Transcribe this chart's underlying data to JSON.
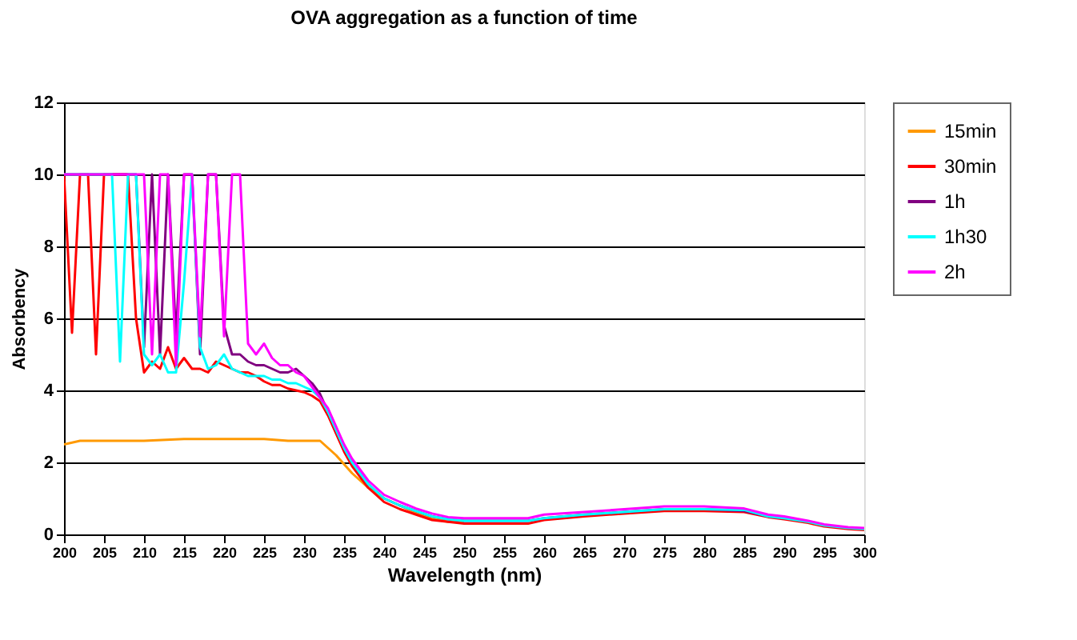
{
  "chart_data": {
    "type": "line",
    "title": "OVA aggregation as a function of time",
    "xlabel": "Wavelength (nm)",
    "ylabel": "Absorbency",
    "xlim": [
      200,
      300
    ],
    "xticks": [
      200,
      205,
      210,
      215,
      220,
      225,
      230,
      235,
      240,
      245,
      250,
      255,
      260,
      265,
      270,
      275,
      280,
      285,
      290,
      295,
      300
    ],
    "ylim": [
      0,
      12
    ],
    "yticks": [
      0,
      2,
      4,
      6,
      8,
      10,
      12
    ],
    "grid": "y",
    "legend": "right",
    "marker": "none",
    "line_style": "solid",
    "series": [
      {
        "name": "15min",
        "color": "#ff9900",
        "x": [
          200,
          202,
          205,
          210,
          215,
          220,
          225,
          228,
          230,
          232,
          234,
          236,
          238,
          240,
          242,
          244,
          246,
          248,
          250
        ],
        "values": [
          2.5,
          2.6,
          2.6,
          2.6,
          2.65,
          2.65,
          2.65,
          2.6,
          2.6,
          2.6,
          2.2,
          1.7,
          1.3,
          1.0,
          0.8,
          0.6,
          0.45,
          0.35,
          0.35
        ]
      },
      {
        "name": "30min",
        "color": "#ff0000",
        "x": [
          200,
          201,
          202,
          203,
          204,
          205,
          206,
          207,
          208,
          209,
          210,
          211,
          212,
          213,
          214,
          215,
          216,
          217,
          218,
          219,
          220,
          221,
          222,
          223,
          224,
          225,
          226,
          227,
          228,
          229,
          230,
          231,
          232,
          233,
          234,
          235,
          236,
          237,
          238,
          240,
          242,
          244,
          246,
          248,
          250,
          255,
          258,
          260,
          265,
          270,
          275,
          280,
          285,
          288,
          290,
          293,
          295,
          298,
          300
        ],
        "values": [
          10,
          5.6,
          10,
          10,
          5.0,
          10,
          10,
          10,
          10,
          6,
          4.5,
          4.8,
          4.6,
          5.2,
          4.6,
          4.9,
          4.6,
          4.6,
          4.5,
          4.8,
          4.7,
          4.6,
          4.5,
          4.5,
          4.4,
          4.25,
          4.15,
          4.15,
          4.05,
          4.0,
          3.95,
          3.85,
          3.7,
          3.3,
          2.8,
          2.3,
          1.9,
          1.6,
          1.3,
          0.9,
          0.7,
          0.55,
          0.4,
          0.35,
          0.3,
          0.3,
          0.3,
          0.4,
          0.5,
          0.58,
          0.65,
          0.65,
          0.62,
          0.48,
          0.42,
          0.32,
          0.22,
          0.15,
          0.12
        ]
      },
      {
        "name": "1h",
        "color": "#800080",
        "x": [
          200,
          209,
          210,
          211,
          212,
          213,
          214,
          215,
          216,
          217,
          218,
          219,
          220,
          221,
          222,
          223,
          224,
          225,
          226,
          227,
          228,
          229,
          230,
          231,
          232,
          233,
          234,
          235,
          236,
          237,
          238,
          240,
          242,
          244,
          246,
          248,
          250,
          255,
          258,
          260,
          265,
          270,
          275,
          280,
          285,
          288,
          290
        ],
        "values": [
          10,
          10,
          5.2,
          10,
          5.0,
          10,
          5.5,
          10,
          10,
          5.0,
          10,
          10,
          5.8,
          5.0,
          5.0,
          4.8,
          4.7,
          4.7,
          4.6,
          4.5,
          4.5,
          4.6,
          4.4,
          4.2,
          3.9,
          3.4,
          2.9,
          2.4,
          2.0,
          1.7,
          1.4,
          1.0,
          0.8,
          0.65,
          0.5,
          0.42,
          0.38,
          0.38,
          0.38,
          0.45,
          0.55,
          0.62,
          0.7,
          0.7,
          0.65,
          0.5,
          0.45
        ]
      },
      {
        "name": "1h30",
        "color": "#00ffff",
        "x": [
          200,
          206,
          207,
          208,
          209,
          210,
          211,
          212,
          213,
          214,
          215,
          216,
          217,
          218,
          219,
          220,
          221,
          222,
          223,
          224,
          225,
          226,
          227,
          228,
          229,
          230,
          231,
          232,
          233,
          234,
          235,
          236,
          237,
          238,
          240,
          242,
          244,
          246,
          248,
          250,
          255,
          258,
          260,
          265,
          270,
          275,
          280,
          285,
          288,
          290,
          293,
          295,
          298,
          300
        ],
        "values": [
          10,
          10,
          4.8,
          10,
          10,
          5.0,
          4.7,
          5.0,
          4.5,
          4.5,
          7,
          10,
          5.2,
          4.6,
          4.7,
          5.0,
          4.6,
          4.5,
          4.4,
          4.4,
          4.4,
          4.3,
          4.3,
          4.2,
          4.2,
          4.1,
          4.0,
          3.8,
          3.4,
          2.9,
          2.4,
          2.0,
          1.7,
          1.4,
          1.0,
          0.8,
          0.65,
          0.5,
          0.42,
          0.38,
          0.38,
          0.38,
          0.45,
          0.55,
          0.62,
          0.7,
          0.7,
          0.68,
          0.5,
          0.45,
          0.35,
          0.25,
          0.18,
          0.15
        ]
      },
      {
        "name": "2h",
        "color": "#ff00ff",
        "x": [
          200,
          210,
          211,
          212,
          213,
          214,
          215,
          216,
          217,
          218,
          219,
          220,
          221,
          222,
          223,
          224,
          225,
          226,
          227,
          228,
          229,
          230,
          231,
          232,
          233,
          234,
          235,
          236,
          237,
          238,
          240,
          242,
          244,
          246,
          248,
          250,
          255,
          258,
          260,
          265,
          270,
          275,
          280,
          285,
          288,
          290,
          293,
          295,
          298,
          300
        ],
        "values": [
          10,
          10,
          5.0,
          10,
          10,
          4.7,
          10,
          10,
          5.5,
          10,
          10,
          5.5,
          10,
          10,
          5.3,
          5.0,
          5.3,
          4.9,
          4.7,
          4.7,
          4.5,
          4.4,
          4.1,
          3.8,
          3.5,
          3.0,
          2.5,
          2.1,
          1.8,
          1.5,
          1.1,
          0.9,
          0.72,
          0.58,
          0.48,
          0.45,
          0.45,
          0.45,
          0.55,
          0.62,
          0.7,
          0.78,
          0.78,
          0.72,
          0.55,
          0.5,
          0.38,
          0.28,
          0.2,
          0.18
        ]
      }
    ]
  }
}
